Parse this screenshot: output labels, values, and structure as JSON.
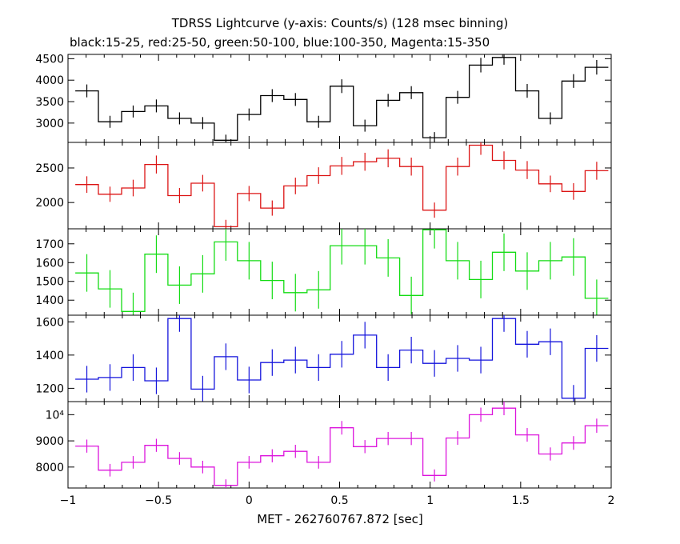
{
  "title": "TDRSS Lightcurve (y-axis: Counts/s) (128 msec binning)",
  "subtitle": "black:15-25, red:25-50, green:50-100, blue:100-350, Magenta:15-350",
  "chart_data": {
    "type": "line",
    "xlabel": "MET - 262760767.872 [sec]",
    "xlim": [
      -1,
      2
    ],
    "x_ticks": [
      -1,
      -0.5,
      0,
      0.5,
      1,
      1.5,
      2
    ],
    "x_tick_labels": [
      "−1",
      "−0.5",
      "0",
      "0.5",
      "1",
      "1.5",
      "2"
    ],
    "bin_width": 0.128,
    "x": [
      -0.896,
      -0.768,
      -0.64,
      -0.512,
      -0.384,
      -0.256,
      -0.128,
      0.0,
      0.128,
      0.256,
      0.384,
      0.512,
      0.64,
      0.768,
      0.896,
      1.024,
      1.152,
      1.28,
      1.408,
      1.536,
      1.664,
      1.792,
      1.92
    ],
    "series": [
      {
        "name": "15-25",
        "color": "#000000",
        "ylim": [
          2550,
          4600
        ],
        "y_ticks": [
          3000,
          3500,
          4000,
          4500
        ],
        "y_tick_labels": [
          "3000",
          "3500",
          "4000",
          "4500"
        ],
        "values": [
          3750,
          3030,
          3270,
          3400,
          3110,
          3000,
          2600,
          3200,
          3640,
          3550,
          3030,
          3860,
          2940,
          3530,
          3710,
          2660,
          3600,
          4350,
          4530,
          3750,
          3110,
          3980,
          4300
        ],
        "errors": [
          150,
          140,
          140,
          150,
          140,
          140,
          130,
          140,
          150,
          150,
          140,
          160,
          140,
          150,
          150,
          130,
          150,
          170,
          170,
          160,
          140,
          160,
          170
        ]
      },
      {
        "name": "25-50",
        "color": "#dc1414",
        "ylim": [
          1620,
          2870
        ],
        "y_ticks": [
          2000,
          2500
        ],
        "y_tick_labels": [
          "2000",
          "2500"
        ],
        "values": [
          2260,
          2120,
          2210,
          2550,
          2100,
          2280,
          1650,
          2130,
          1920,
          2240,
          2390,
          2530,
          2590,
          2640,
          2520,
          1890,
          2520,
          2830,
          2610,
          2470,
          2270,
          2160,
          2460
        ],
        "errors": [
          120,
          110,
          120,
          130,
          110,
          120,
          100,
          110,
          110,
          120,
          120,
          130,
          130,
          130,
          130,
          110,
          130,
          140,
          130,
          130,
          120,
          120,
          130
        ]
      },
      {
        "name": "50-100",
        "color": "#14dc14",
        "ylim": [
          1320,
          1780
        ],
        "y_ticks": [
          1400,
          1500,
          1600,
          1700
        ],
        "y_tick_labels": [
          "1400",
          "1500",
          "1600",
          "1700"
        ],
        "values": [
          1545,
          1460,
          1340,
          1645,
          1480,
          1540,
          1710,
          1610,
          1505,
          1440,
          1455,
          1690,
          1690,
          1625,
          1425,
          1775,
          1610,
          1510,
          1655,
          1555,
          1610,
          1630,
          1410
        ],
        "errors": [
          100,
          100,
          100,
          100,
          100,
          100,
          100,
          100,
          100,
          100,
          100,
          100,
          100,
          100,
          100,
          100,
          100,
          100,
          100,
          100,
          100,
          100,
          100
        ]
      },
      {
        "name": "100-350",
        "color": "#1414dc",
        "ylim": [
          1120,
          1640
        ],
        "y_ticks": [
          1200,
          1400,
          1600
        ],
        "y_tick_labels": [
          "1200",
          "1400",
          "1600"
        ],
        "values": [
          1255,
          1265,
          1325,
          1245,
          1620,
          1195,
          1390,
          1250,
          1355,
          1370,
          1325,
          1405,
          1520,
          1325,
          1430,
          1350,
          1380,
          1370,
          1620,
          1465,
          1480,
          1140,
          1440
        ],
        "errors": [
          80,
          80,
          80,
          80,
          80,
          80,
          80,
          80,
          80,
          80,
          80,
          80,
          80,
          80,
          80,
          80,
          80,
          80,
          80,
          80,
          80,
          80,
          80
        ]
      },
      {
        "name": "15-350",
        "color": "#dc14dc",
        "ylim": [
          7200,
          10500
        ],
        "y_ticks": [
          8000,
          9000,
          10000
        ],
        "y_tick_labels": [
          "8000",
          "9000",
          "10⁴"
        ],
        "values": [
          8800,
          7880,
          8180,
          8830,
          8330,
          8000,
          7300,
          8180,
          8430,
          8600,
          8180,
          9500,
          8780,
          9090,
          9090,
          7680,
          9110,
          10000,
          10250,
          9230,
          8500,
          8920,
          9580
        ],
        "errors": [
          250,
          240,
          240,
          250,
          240,
          240,
          230,
          240,
          250,
          250,
          240,
          260,
          250,
          250,
          250,
          230,
          260,
          270,
          270,
          260,
          250,
          260,
          270
        ]
      }
    ]
  }
}
